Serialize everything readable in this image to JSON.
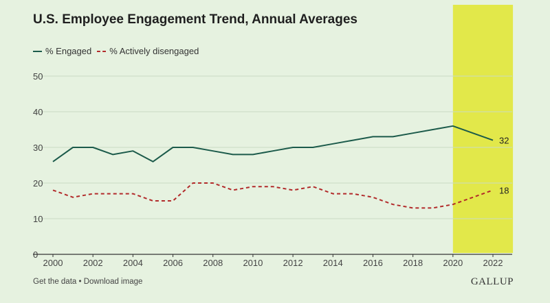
{
  "colors": {
    "background": "#e6f2e0",
    "engaged": "#1b5a4a",
    "disengaged": "#b22a2a",
    "highlight": "#e2e84a",
    "grid": "#c9dbc4"
  },
  "footer": {
    "get_data": "Get the data",
    "separator": " • ",
    "download": "Download image",
    "brand": "GALLUP"
  },
  "chart_data": {
    "type": "line",
    "title": "U.S. Employee Engagement Trend, Annual Averages",
    "xlabel": "",
    "ylabel": "",
    "xlim": [
      2000,
      2022
    ],
    "ylim": [
      0,
      50
    ],
    "x_ticks": [
      2000,
      2002,
      2004,
      2006,
      2008,
      2010,
      2012,
      2014,
      2016,
      2018,
      2020,
      2022
    ],
    "y_ticks": [
      0,
      10,
      20,
      30,
      40,
      50
    ],
    "grid": true,
    "legend_position": "top-left",
    "highlight_range": [
      2020,
      2023
    ],
    "x": [
      2000,
      2001,
      2002,
      2003,
      2004,
      2005,
      2006,
      2007,
      2008,
      2009,
      2010,
      2011,
      2012,
      2013,
      2014,
      2015,
      2016,
      2017,
      2018,
      2019,
      2020,
      2021,
      2022
    ],
    "series": [
      {
        "name": "% Engaged",
        "style": "solid",
        "values": [
          26,
          30,
          30,
          28,
          29,
          26,
          30,
          30,
          29,
          28,
          28,
          29,
          30,
          30,
          31,
          32,
          33,
          33,
          34,
          35,
          36,
          34,
          32
        ],
        "end_label": "32"
      },
      {
        "name": "% Actively disengaged",
        "style": "dashed",
        "values": [
          18,
          16,
          17,
          17,
          17,
          15,
          15,
          20,
          20,
          18,
          19,
          19,
          18,
          19,
          17,
          17,
          16,
          14,
          13,
          13,
          14,
          16,
          18
        ],
        "end_label": "18"
      }
    ]
  }
}
